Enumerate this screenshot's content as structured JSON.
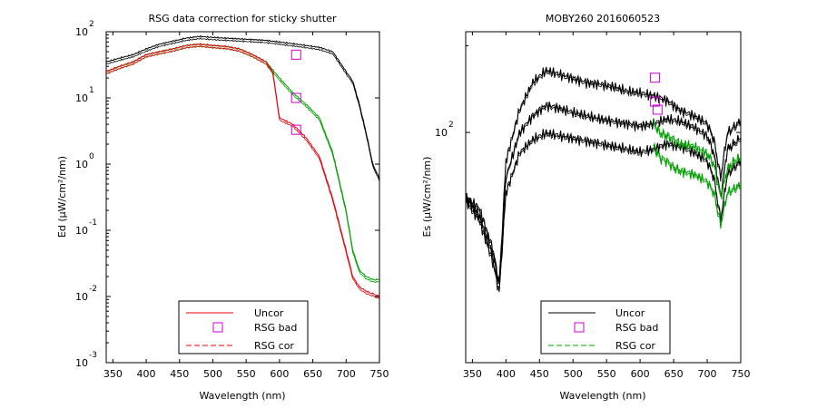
{
  "figure": {
    "background": "#ffffff"
  },
  "chart_data": [
    {
      "type": "line",
      "title": "RSG data correction for sticky shutter",
      "xlabel": "Wavelength (nm)",
      "ylabel": "Ed (µW/cm²/nm)",
      "xlim": [
        340,
        750
      ],
      "ylim_log10": [
        -3,
        2
      ],
      "y_scale": "log",
      "x_ticks": [
        350,
        400,
        450,
        500,
        550,
        600,
        650,
        700,
        750
      ],
      "y_tick_mantissa": "10",
      "y_tick_exponents": [
        2,
        1,
        0,
        -1,
        -2,
        -3
      ],
      "grid": false,
      "legend": {
        "position": "bottom-center",
        "entries": [
          {
            "label": "Uncor",
            "style": "solid",
            "color": "#e8000b"
          },
          {
            "label": "RSG bad",
            "style": "square-marker",
            "color": "#cc00cc"
          },
          {
            "label": "RSG cor",
            "style": "dashed",
            "color": "#e8000b"
          }
        ]
      },
      "series": [
        {
          "color": "#000000",
          "style": "solid",
          "x": [
            340,
            360,
            380,
            400,
            420,
            440,
            460,
            480,
            500,
            520,
            540,
            560,
            580,
            600,
            620,
            640,
            660,
            680,
            700,
            710,
            720,
            730,
            740,
            750
          ],
          "y": [
            35,
            40,
            45,
            55,
            65,
            72,
            80,
            85,
            82,
            80,
            78,
            76,
            74,
            70,
            66,
            62,
            58,
            50,
            25,
            18,
            8,
            3,
            1,
            0.6
          ]
        },
        {
          "color": "#00a000",
          "style": "solid",
          "x": [
            340,
            360,
            380,
            400,
            420,
            440,
            460,
            480,
            500,
            520,
            540,
            560,
            580,
            600,
            620,
            640,
            660,
            680,
            700,
            710,
            720,
            730,
            740,
            750
          ],
          "y": [
            25,
            30,
            35,
            45,
            50,
            55,
            62,
            65,
            62,
            60,
            55,
            45,
            35,
            20,
            12,
            8,
            5,
            1.5,
            0.2,
            0.05,
            0.025,
            0.02,
            0.018,
            0.018
          ]
        },
        {
          "color": "#e8000b",
          "style": "solid",
          "x": [
            340,
            360,
            380,
            400,
            420,
            440,
            460,
            480,
            500,
            520,
            540,
            560,
            580,
            590,
            600,
            620,
            640,
            660,
            680,
            700,
            710,
            720,
            730,
            740,
            750
          ],
          "y": [
            25,
            30,
            35,
            45,
            50,
            55,
            62,
            65,
            62,
            60,
            55,
            45,
            35,
            25,
            5,
            4,
            2.5,
            1.3,
            0.3,
            0.05,
            0.02,
            0.014,
            0.012,
            0.011,
            0.01
          ]
        }
      ],
      "markers": {
        "label": "RSG bad",
        "x": [
          625,
          625,
          625
        ],
        "y": [
          45,
          10,
          3.3
        ]
      }
    },
    {
      "type": "line",
      "title": "MOBY260  2016060523",
      "xlabel": "Wavelength (nm)",
      "ylabel": "Es (µW/cm²/nm)",
      "xlim": [
        340,
        750
      ],
      "ylim_log10": [
        1.2,
        2.35
      ],
      "y_scale": "log",
      "x_ticks": [
        350,
        400,
        450,
        500,
        550,
        600,
        650,
        700,
        750
      ],
      "y_tick_mantissa": "10",
      "y_tick_exponents": [
        2
      ],
      "grid": false,
      "legend": {
        "position": "bottom-center",
        "entries": [
          {
            "label": "Uncor",
            "style": "solid",
            "color": "#000000"
          },
          {
            "label": "RSG bad",
            "style": "square-marker",
            "color": "#cc00cc"
          },
          {
            "label": "RSG cor",
            "style": "dashed",
            "color": "#00a000"
          }
        ]
      },
      "series": [
        {
          "color": "#000000",
          "style": "solid",
          "x": [
            340,
            360,
            380,
            390,
            400,
            420,
            440,
            460,
            480,
            500,
            520,
            540,
            560,
            580,
            600,
            620,
            640,
            660,
            680,
            700,
            710,
            720,
            730,
            740,
            750
          ],
          "y": [
            60,
            55,
            40,
            30,
            80,
            120,
            150,
            165,
            160,
            155,
            150,
            148,
            145,
            140,
            138,
            135,
            130,
            120,
            115,
            108,
            95,
            70,
            100,
            105,
            110
          ]
        },
        {
          "color": "#000000",
          "style": "solid",
          "x": [
            340,
            360,
            380,
            390,
            400,
            420,
            440,
            460,
            480,
            500,
            520,
            540,
            560,
            580,
            600,
            620,
            640,
            660,
            680,
            700,
            710,
            720,
            730,
            740,
            750
          ],
          "y": [
            60,
            52,
            38,
            30,
            70,
            100,
            115,
            125,
            122,
            118,
            115,
            112,
            110,
            108,
            106,
            108,
            112,
            110,
            105,
            98,
            85,
            60,
            88,
            92,
            96
          ]
        },
        {
          "color": "#000000",
          "style": "solid",
          "x": [
            340,
            360,
            380,
            390,
            400,
            420,
            440,
            460,
            480,
            500,
            520,
            540,
            560,
            580,
            600,
            620,
            640,
            660,
            680,
            700,
            710,
            720,
            730,
            740,
            750
          ],
          "y": [
            58,
            50,
            36,
            28,
            62,
            85,
            95,
            100,
            98,
            96,
            94,
            92,
            90,
            88,
            86,
            88,
            92,
            90,
            86,
            80,
            70,
            50,
            72,
            76,
            80
          ]
        },
        {
          "color": "#00a000",
          "style": "solid",
          "x": [
            620,
            630,
            640,
            650,
            660,
            680,
            700,
            710,
            720,
            730,
            740,
            750
          ],
          "y": [
            108,
            100,
            98,
            95,
            92,
            90,
            85,
            78,
            60,
            75,
            80,
            82
          ]
        },
        {
          "color": "#00a000",
          "style": "solid",
          "x": [
            620,
            630,
            640,
            650,
            660,
            680,
            700,
            710,
            720,
            730,
            740,
            750
          ],
          "y": [
            90,
            82,
            80,
            76,
            74,
            72,
            68,
            62,
            48,
            62,
            64,
            66
          ]
        }
      ],
      "markers": {
        "label": "RSG bad",
        "x": [
          622,
          622,
          626
        ],
        "y": [
          155,
          128,
          120
        ]
      }
    }
  ]
}
